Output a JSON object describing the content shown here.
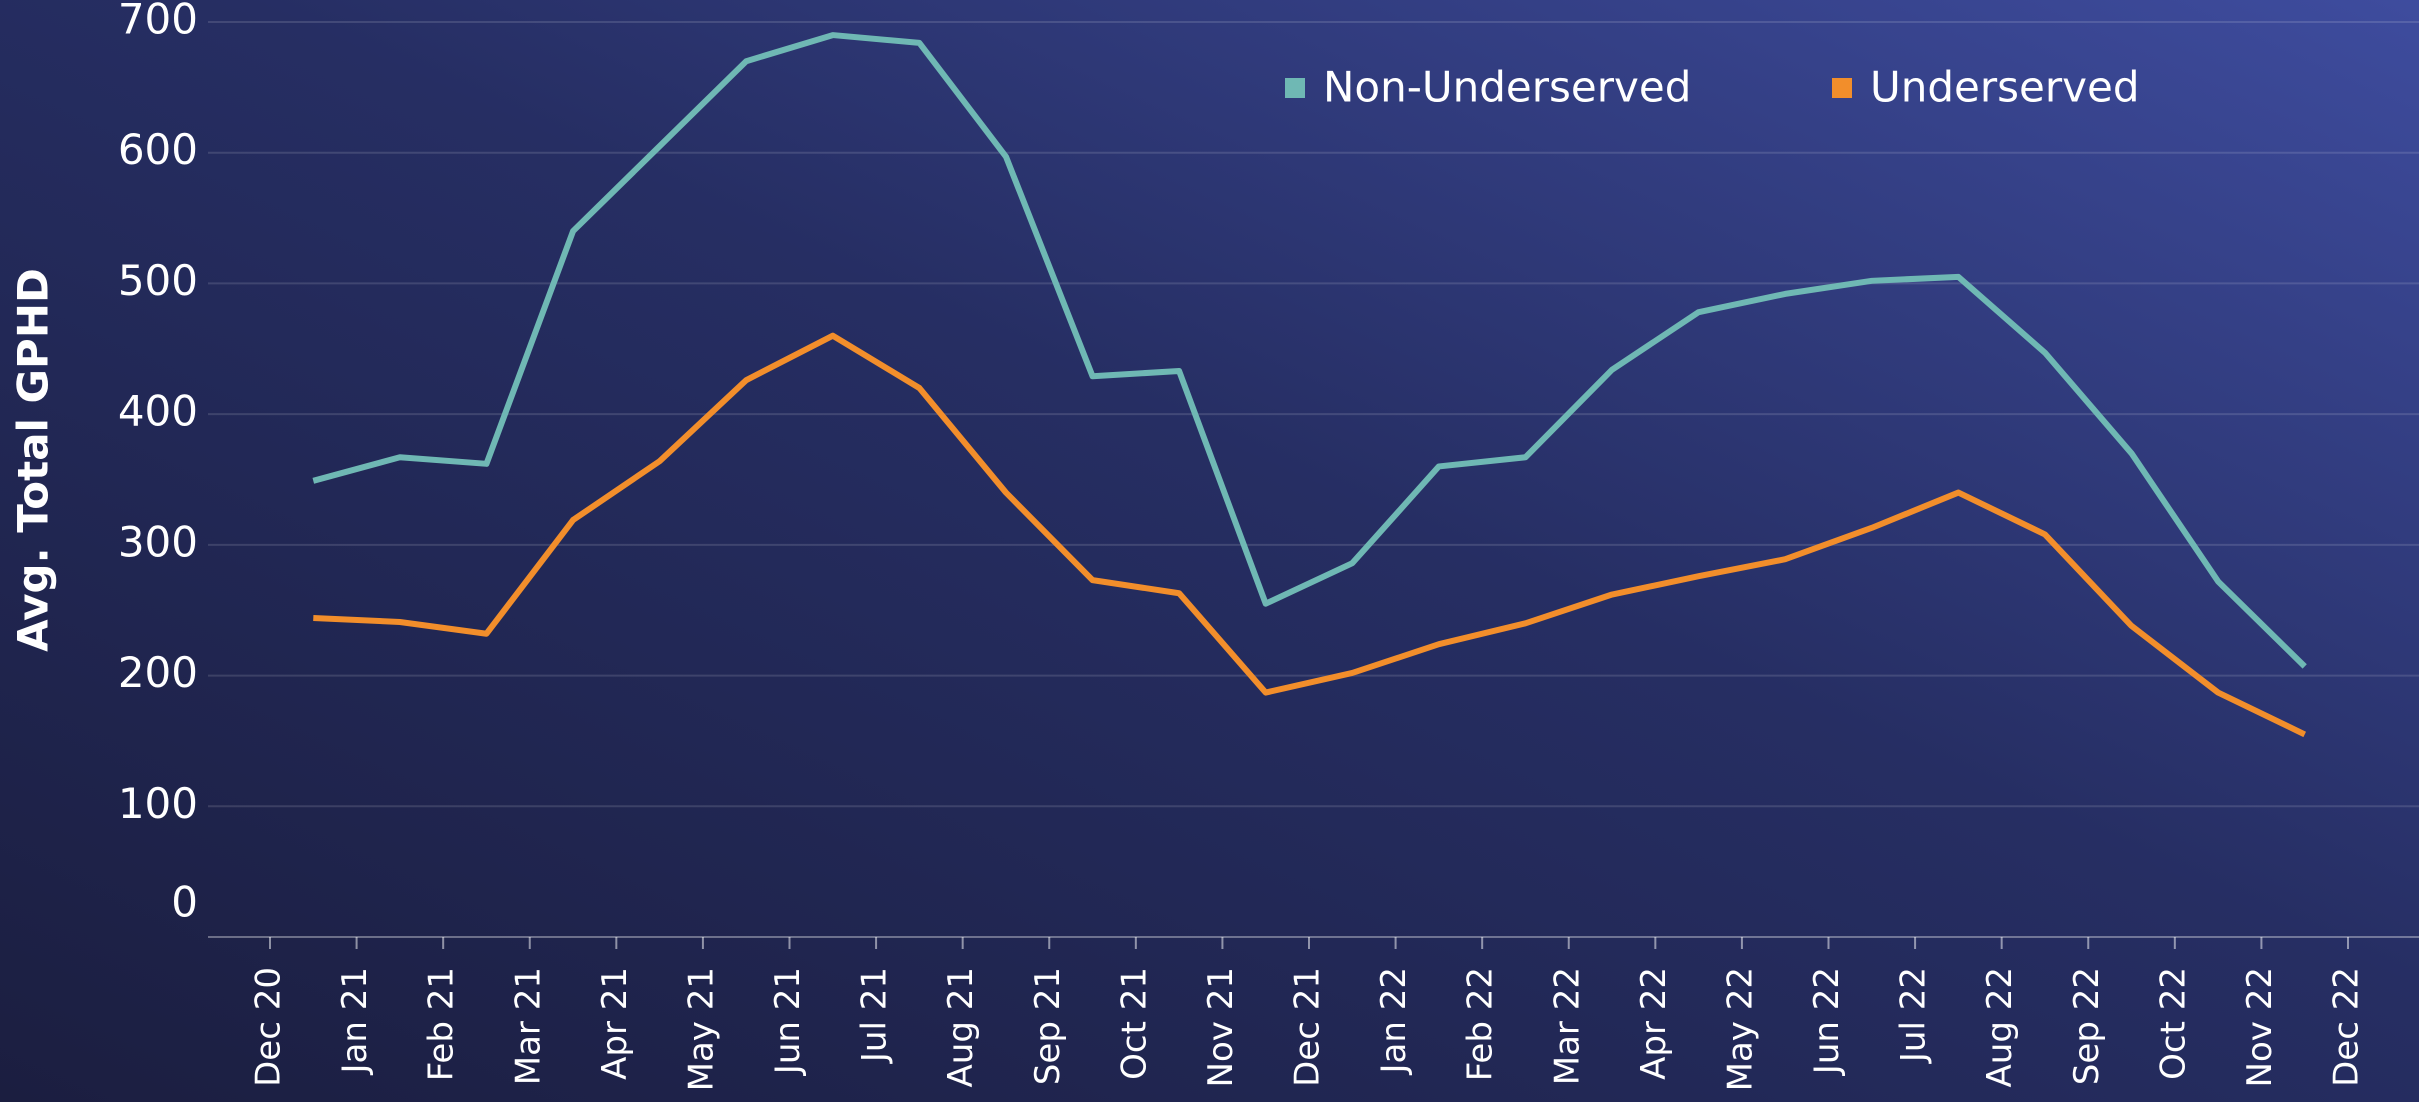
{
  "chart_data": {
    "type": "line",
    "y_label": "Avg. Total GPHD",
    "xticks": [
      "Dec 20",
      "Jan 21",
      "Feb 21",
      "Mar 21",
      "Apr 21",
      "May 21",
      "Jun 21",
      "Jul 21",
      "Aug 21",
      "Sep 21",
      "Oct 21",
      "Nov 21",
      "Dec 21",
      "Jan 22",
      "Feb 22",
      "Mar 22",
      "Apr 22",
      "May 22",
      "Jun 22",
      "Jul 22",
      "Aug 22",
      "Sep 22",
      "Oct 22",
      "Nov 22",
      "Dec 22"
    ],
    "x": [
      "Dec 20",
      "Jan 21",
      "Feb 21",
      "Mar 21",
      "Apr 21",
      "May 21",
      "Jun 21",
      "Jul 21",
      "Aug 21",
      "Sep 21",
      "Oct 21",
      "Nov 21",
      "Dec 21",
      "Jan 22",
      "Feb 22",
      "Mar 22",
      "Apr 22",
      "May 22",
      "Jun 22",
      "Jul 22",
      "Aug 22",
      "Sep 22",
      "Oct 22",
      "Nov 22"
    ],
    "series": [
      {
        "name": "Non-Underserved",
        "color": "#6fb8b4",
        "values": [
          349,
          367,
          362,
          540,
          605,
          670,
          690,
          684,
          597,
          429,
          433,
          255,
          286,
          360,
          367,
          434,
          478,
          492,
          502,
          505,
          447,
          370,
          272,
          207
        ]
      },
      {
        "name": "Underserved",
        "color": "#f28e2b",
        "values": [
          244,
          241,
          232,
          319,
          364,
          426,
          460,
          420,
          340,
          273,
          263,
          187,
          202,
          224,
          240,
          262,
          276,
          289,
          313,
          340,
          308,
          238,
          187,
          155
        ]
      }
    ],
    "ylim": [
      0,
      700
    ],
    "yticks": [
      0,
      100,
      200,
      300,
      400,
      500,
      600,
      700
    ],
    "grid": true,
    "legend": "top-right"
  }
}
